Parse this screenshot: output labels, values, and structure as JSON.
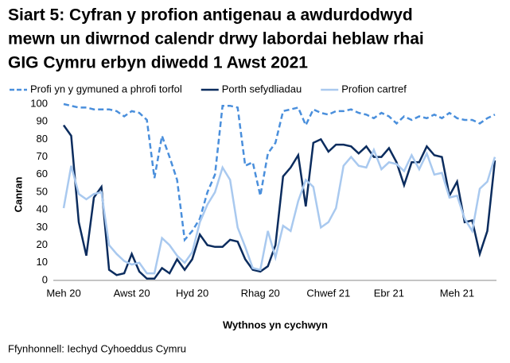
{
  "chart_data": {
    "type": "line",
    "title": [
      "Siart 5: Cyfran y profion antigenau a awdurdodwyd",
      "mewn un diwrnod calendr drwy labordai heblaw rhai",
      "GIG Cymru erbyn diwedd 1 Awst 2021"
    ],
    "y_label": "Canran",
    "x_label": "Wythnos yn cychwyn",
    "source": "Ffynhonnell: Iechyd Cyhoeddus Cymru",
    "categories": [
      "Meh 20",
      null,
      null,
      null,
      null,
      null,
      null,
      null,
      null,
      "Awst 20",
      null,
      null,
      null,
      null,
      null,
      null,
      null,
      "Hyd 20",
      null,
      null,
      null,
      null,
      null,
      null,
      null,
      null,
      "Rhag 20",
      null,
      null,
      null,
      null,
      null,
      null,
      null,
      null,
      "Chwef 21",
      null,
      null,
      null,
      null,
      null,
      null,
      null,
      "Ebr 21",
      null,
      null,
      null,
      null,
      null,
      null,
      null,
      null,
      "Meh 21",
      null,
      null,
      null,
      null,
      null
    ],
    "ylim": [
      0,
      100
    ],
    "yticks": [
      0,
      10,
      20,
      30,
      40,
      50,
      60,
      70,
      80,
      90,
      100
    ],
    "grid": false,
    "legend": "top",
    "series": [
      {
        "name": "Profi yn y gymuned a phrofi torfol",
        "color": "#4a8fdc",
        "dashed": true,
        "values": [
          100,
          99,
          98,
          98,
          97,
          97,
          97,
          96,
          93,
          96,
          95,
          91,
          58,
          82,
          70,
          57,
          23,
          28,
          35,
          50,
          60,
          99,
          99,
          98,
          65,
          67,
          48,
          72,
          78,
          96,
          97,
          98,
          88,
          97,
          95,
          94,
          96,
          96,
          97,
          95,
          94,
          92,
          95,
          93,
          89,
          93,
          91,
          93,
          92,
          94,
          92,
          95,
          92,
          91,
          91,
          89,
          92,
          94
        ]
      },
      {
        "name": "Porth sefydliadau",
        "color": "#0b2c5e",
        "dashed": false,
        "values": [
          88,
          82,
          33,
          14,
          47,
          53,
          6,
          3,
          4,
          15,
          5,
          1,
          1,
          7,
          4,
          12,
          6,
          12,
          26,
          20,
          19,
          19,
          23,
          22,
          12,
          6,
          5,
          8,
          20,
          59,
          64,
          71,
          42,
          78,
          80,
          73,
          77,
          77,
          76,
          72,
          76,
          70,
          70,
          75,
          67,
          54,
          67,
          67,
          76,
          71,
          70,
          48,
          56,
          33,
          34,
          15,
          28,
          68
        ]
      },
      {
        "name": "Profion cartref",
        "color": "#a9c9ef",
        "dashed": false,
        "values": [
          41,
          65,
          49,
          46,
          49,
          50,
          20,
          15,
          11,
          9,
          10,
          4,
          4,
          24,
          20,
          14,
          10,
          16,
          33,
          43,
          50,
          64,
          57,
          30,
          19,
          7,
          6,
          28,
          13,
          31,
          28,
          45,
          57,
          53,
          30,
          33,
          41,
          65,
          70,
          65,
          64,
          74,
          63,
          67,
          66,
          62,
          71,
          63,
          72,
          60,
          61,
          47,
          48,
          35,
          28,
          52,
          56,
          70
        ]
      }
    ]
  }
}
